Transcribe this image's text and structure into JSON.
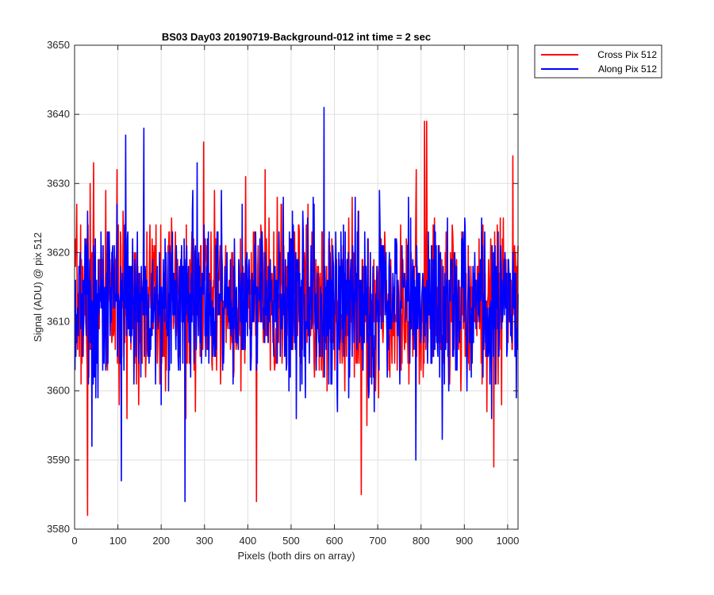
{
  "chart_data": {
    "type": "line",
    "title": "BS03 Day03 20190719-Background-012 int time = 2 sec",
    "xlabel": "Pixels (both dirs on array)",
    "ylabel": "Signal (ADU) @ pix 512",
    "xlim": [
      0,
      1024
    ],
    "ylim": [
      3580,
      3650
    ],
    "xticks": [
      0,
      100,
      200,
      300,
      400,
      500,
      600,
      700,
      800,
      900,
      1000
    ],
    "yticks": [
      3580,
      3590,
      3600,
      3610,
      3620,
      3630,
      3640,
      3650
    ],
    "grid": true,
    "legend_position": "outside-top-right",
    "noise_amplitude_note": "",
    "series": [
      {
        "name": "Cross Pix 512",
        "color": "#ff0000",
        "baseline": 3613,
        "std": 6,
        "seed": 7,
        "spikes": [
          [
            30,
            3582
          ],
          [
            36,
            3630
          ],
          [
            44,
            3633
          ],
          [
            420,
            3584
          ],
          [
            662,
            3585
          ],
          [
            808,
            3639
          ],
          [
            813,
            3639
          ],
          [
            968,
            3589
          ],
          [
            1012,
            3634
          ],
          [
            298,
            3636
          ]
        ]
      },
      {
        "name": "Along Pix 512",
        "color": "#0000ff",
        "baseline": 3613,
        "std": 6,
        "seed": 13,
        "spikes": [
          [
            108,
            3587
          ],
          [
            118,
            3637
          ],
          [
            160,
            3638
          ],
          [
            255,
            3584
          ],
          [
            576,
            3641
          ],
          [
            40,
            3592
          ],
          [
            788,
            3590
          ],
          [
            963,
            3596
          ]
        ]
      }
    ]
  }
}
